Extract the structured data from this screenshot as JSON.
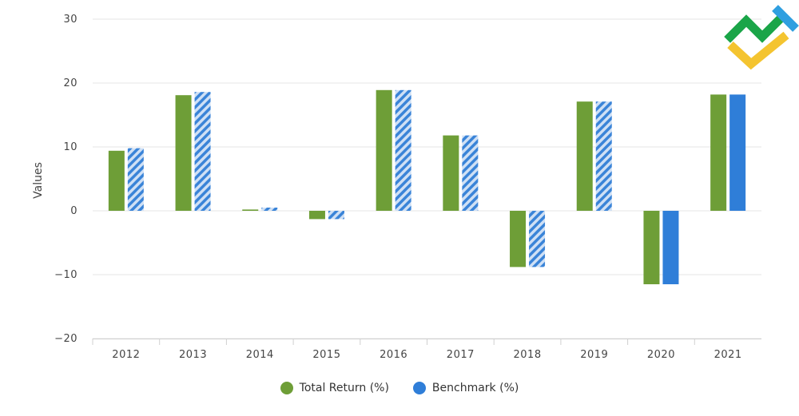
{
  "chart_data": {
    "type": "bar",
    "title": "",
    "xlabel": "",
    "ylabel": "Values",
    "ylim": [
      -20,
      30
    ],
    "yticks": [
      -20,
      -10,
      0,
      10,
      20,
      30
    ],
    "ytick_labels": [
      "−20",
      "−10",
      "0",
      "10",
      "20",
      "30"
    ],
    "grid": true,
    "legend_position": "bottom-center",
    "categories": [
      "2012",
      "2013",
      "2014",
      "2015",
      "2016",
      "2017",
      "2018",
      "2019",
      "2020",
      "2021"
    ],
    "series": [
      {
        "name": "Total Return (%)",
        "color": "#6e9e37",
        "values": [
          9.4,
          18.1,
          0.2,
          -1.3,
          18.9,
          11.8,
          -8.8,
          17.1,
          -11.5,
          18.2
        ]
      },
      {
        "name": "Benchmark (%)",
        "color": "#2f7ed8",
        "hatched": [
          true,
          true,
          true,
          true,
          true,
          true,
          true,
          true,
          false,
          false
        ],
        "values": [
          9.8,
          18.6,
          0.5,
          -1.3,
          18.9,
          11.8,
          -8.8,
          17.1,
          -11.5,
          18.2
        ]
      }
    ]
  },
  "logo": {
    "name": "brand-logo"
  }
}
